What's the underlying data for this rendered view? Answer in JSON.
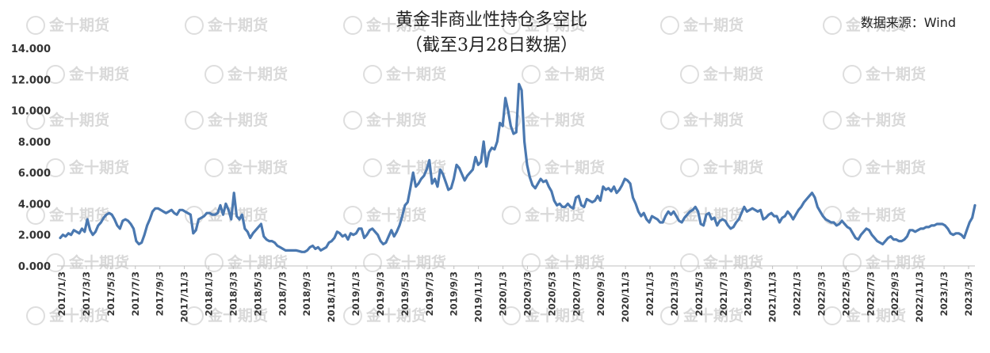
{
  "watermark": {
    "text": "金十期货"
  },
  "chart_data": {
    "type": "line",
    "title": "黄金非商业性持仓多空比",
    "subtitle": "（截至3月28日数据）",
    "source": "数据来源：Wind",
    "ylim": [
      0,
      14
    ],
    "y_ticks": [
      "0.000",
      "2.000",
      "4.000",
      "6.000",
      "8.000",
      "10.000",
      "12.000",
      "14.000"
    ],
    "x_ticks": [
      "2017/1/3",
      "2017/3/3",
      "2017/5/3",
      "2017/7/3",
      "2017/9/3",
      "2017/11/3",
      "2018/1/3",
      "2018/3/3",
      "2018/5/3",
      "2018/7/3",
      "2018/9/3",
      "2018/11/3",
      "2019/1/3",
      "2019/3/3",
      "2019/5/3",
      "2019/7/3",
      "2019/9/3",
      "2019/11/3",
      "2020/1/3",
      "2020/3/3",
      "2020/5/3",
      "2020/7/3",
      "2020/9/3",
      "2020/11/3",
      "2021/1/3",
      "2021/3/3",
      "2021/5/3",
      "2021/7/3",
      "2021/9/3",
      "2021/11/3",
      "2022/1/3",
      "2022/3/3",
      "2022/5/3",
      "2022/7/3",
      "2022/9/3",
      "2022/11/3",
      "2023/1/3",
      "2023/3/3"
    ],
    "grid": false,
    "legend": "none",
    "series": [
      {
        "color": "#4a78b0",
        "values": [
          1.8,
          2.0,
          1.9,
          2.1,
          2.0,
          2.3,
          2.2,
          2.1,
          2.4,
          2.2,
          3.0,
          2.3,
          2.0,
          2.2,
          2.6,
          2.8,
          3.1,
          3.3,
          3.4,
          3.3,
          3.0,
          2.6,
          2.4,
          2.9,
          3.0,
          2.9,
          2.7,
          2.4,
          1.6,
          1.4,
          1.5,
          2.0,
          2.6,
          3.0,
          3.5,
          3.7,
          3.7,
          3.6,
          3.5,
          3.4,
          3.5,
          3.6,
          3.4,
          3.3,
          3.6,
          3.6,
          3.5,
          3.4,
          3.3,
          2.1,
          2.3,
          3.0,
          3.1,
          3.2,
          3.4,
          3.4,
          3.3,
          3.3,
          3.4,
          3.9,
          3.3,
          4.0,
          3.6,
          3.0,
          4.7,
          3.2,
          3.0,
          3.3,
          2.4,
          2.2,
          1.8,
          2.1,
          2.3,
          2.5,
          2.7,
          1.9,
          1.7,
          1.6,
          1.6,
          1.5,
          1.3,
          1.2,
          1.1,
          1.0,
          1.0,
          1.0,
          1.0,
          1.0,
          0.95,
          0.9,
          0.9,
          1.0,
          1.2,
          1.3,
          1.1,
          1.2,
          1.0,
          1.1,
          1.2,
          1.5,
          1.6,
          1.8,
          2.2,
          2.1,
          1.9,
          2.0,
          1.7,
          2.1,
          2.0,
          2.1,
          2.4,
          2.4,
          1.8,
          2.0,
          2.3,
          2.4,
          2.2,
          2.0,
          1.6,
          1.4,
          1.5,
          1.9,
          2.3,
          1.9,
          2.2,
          2.6,
          3.2,
          3.9,
          4.1,
          5.0,
          6.0,
          5.1,
          5.3,
          5.6,
          5.8,
          6.2,
          6.8,
          5.3,
          5.6,
          5.1,
          6.2,
          5.9,
          5.4,
          4.9,
          5.0,
          5.6,
          6.5,
          6.3,
          5.9,
          5.5,
          5.8,
          6.0,
          6.2,
          7.0,
          6.5,
          6.7,
          8.0,
          6.4,
          7.3,
          7.6,
          7.5,
          8.0,
          9.2,
          9.0,
          10.8,
          10.0,
          9.0,
          8.5,
          8.6,
          11.7,
          11.3,
          8.0,
          6.5,
          5.7,
          5.2,
          5.0,
          5.3,
          5.6,
          5.4,
          5.5,
          5.1,
          4.8,
          4.2,
          3.9,
          4.0,
          3.8,
          3.8,
          4.0,
          3.8,
          3.7,
          4.4,
          4.5,
          3.9,
          3.8,
          4.3,
          4.2,
          4.1,
          4.2,
          4.5,
          4.2,
          5.1,
          4.9,
          5.0,
          4.8,
          5.1,
          4.7,
          4.9,
          5.2,
          5.6,
          5.5,
          5.3,
          4.4,
          4.0,
          3.5,
          3.2,
          3.4,
          3.0,
          2.8,
          3.2,
          3.1,
          3.0,
          2.8,
          2.8,
          3.2,
          3.5,
          3.3,
          3.5,
          3.2,
          2.9,
          2.8,
          3.1,
          3.3,
          3.5,
          3.6,
          3.8,
          3.5,
          2.7,
          2.6,
          3.3,
          3.4,
          3.0,
          3.1,
          2.6,
          2.9,
          3.0,
          2.9,
          2.6,
          2.4,
          2.5,
          2.8,
          3.0,
          3.4,
          3.8,
          3.5,
          3.6,
          3.7,
          3.6,
          3.5,
          3.6,
          3.0,
          3.1,
          3.3,
          3.4,
          3.2,
          3.2,
          2.8,
          3.1,
          3.2,
          3.5,
          3.3,
          3.0,
          3.3,
          3.6,
          3.8,
          4.1,
          4.3,
          4.5,
          4.7,
          4.4,
          3.8,
          3.5,
          3.2,
          3.0,
          2.9,
          2.8,
          2.8,
          2.6,
          2.7,
          2.9,
          2.7,
          2.5,
          2.4,
          2.1,
          1.8,
          1.7,
          2.0,
          2.2,
          2.4,
          2.3,
          2.0,
          1.8,
          1.6,
          1.5,
          1.4,
          1.6,
          1.8,
          1.9,
          1.7,
          1.7,
          1.6,
          1.6,
          1.7,
          1.9,
          2.3,
          2.3,
          2.2,
          2.3,
          2.4,
          2.4,
          2.5,
          2.5,
          2.6,
          2.6,
          2.7,
          2.7,
          2.7,
          2.6,
          2.4,
          2.1,
          2.0,
          2.1,
          2.1,
          2.0,
          1.8,
          2.3,
          2.8,
          3.1,
          3.9
        ]
      }
    ]
  }
}
